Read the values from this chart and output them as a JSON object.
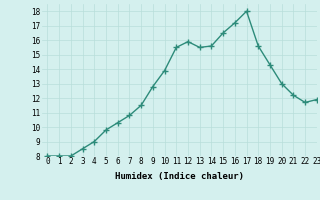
{
  "x": [
    0,
    1,
    2,
    3,
    4,
    5,
    6,
    7,
    8,
    9,
    10,
    11,
    12,
    13,
    14,
    15,
    16,
    17,
    18,
    19,
    20,
    21,
    22,
    23
  ],
  "y": [
    8,
    8,
    8,
    8.5,
    9,
    9.8,
    10.3,
    10.8,
    11.5,
    12.8,
    13.9,
    15.5,
    15.9,
    15.5,
    15.6,
    16.5,
    17.2,
    18.0,
    15.6,
    14.3,
    13.0,
    12.2,
    11.7,
    11.9
  ],
  "xlim": [
    -0.5,
    23
  ],
  "ylim": [
    8,
    18.5
  ],
  "yticks": [
    8,
    9,
    10,
    11,
    12,
    13,
    14,
    15,
    16,
    17,
    18
  ],
  "xticks": [
    0,
    1,
    2,
    3,
    4,
    5,
    6,
    7,
    8,
    9,
    10,
    11,
    12,
    13,
    14,
    15,
    16,
    17,
    18,
    19,
    20,
    21,
    22,
    23
  ],
  "xlabel": "Humidex (Indice chaleur)",
  "line_color": "#2d8b7a",
  "marker": "+",
  "marker_color": "#2d8b7a",
  "bg_color": "#d4f0ee",
  "grid_color": "#b8deda",
  "tick_fontsize": 5.5,
  "label_fontsize": 6.5,
  "linewidth": 1.0,
  "markersize": 4,
  "markeredgewidth": 1.0
}
